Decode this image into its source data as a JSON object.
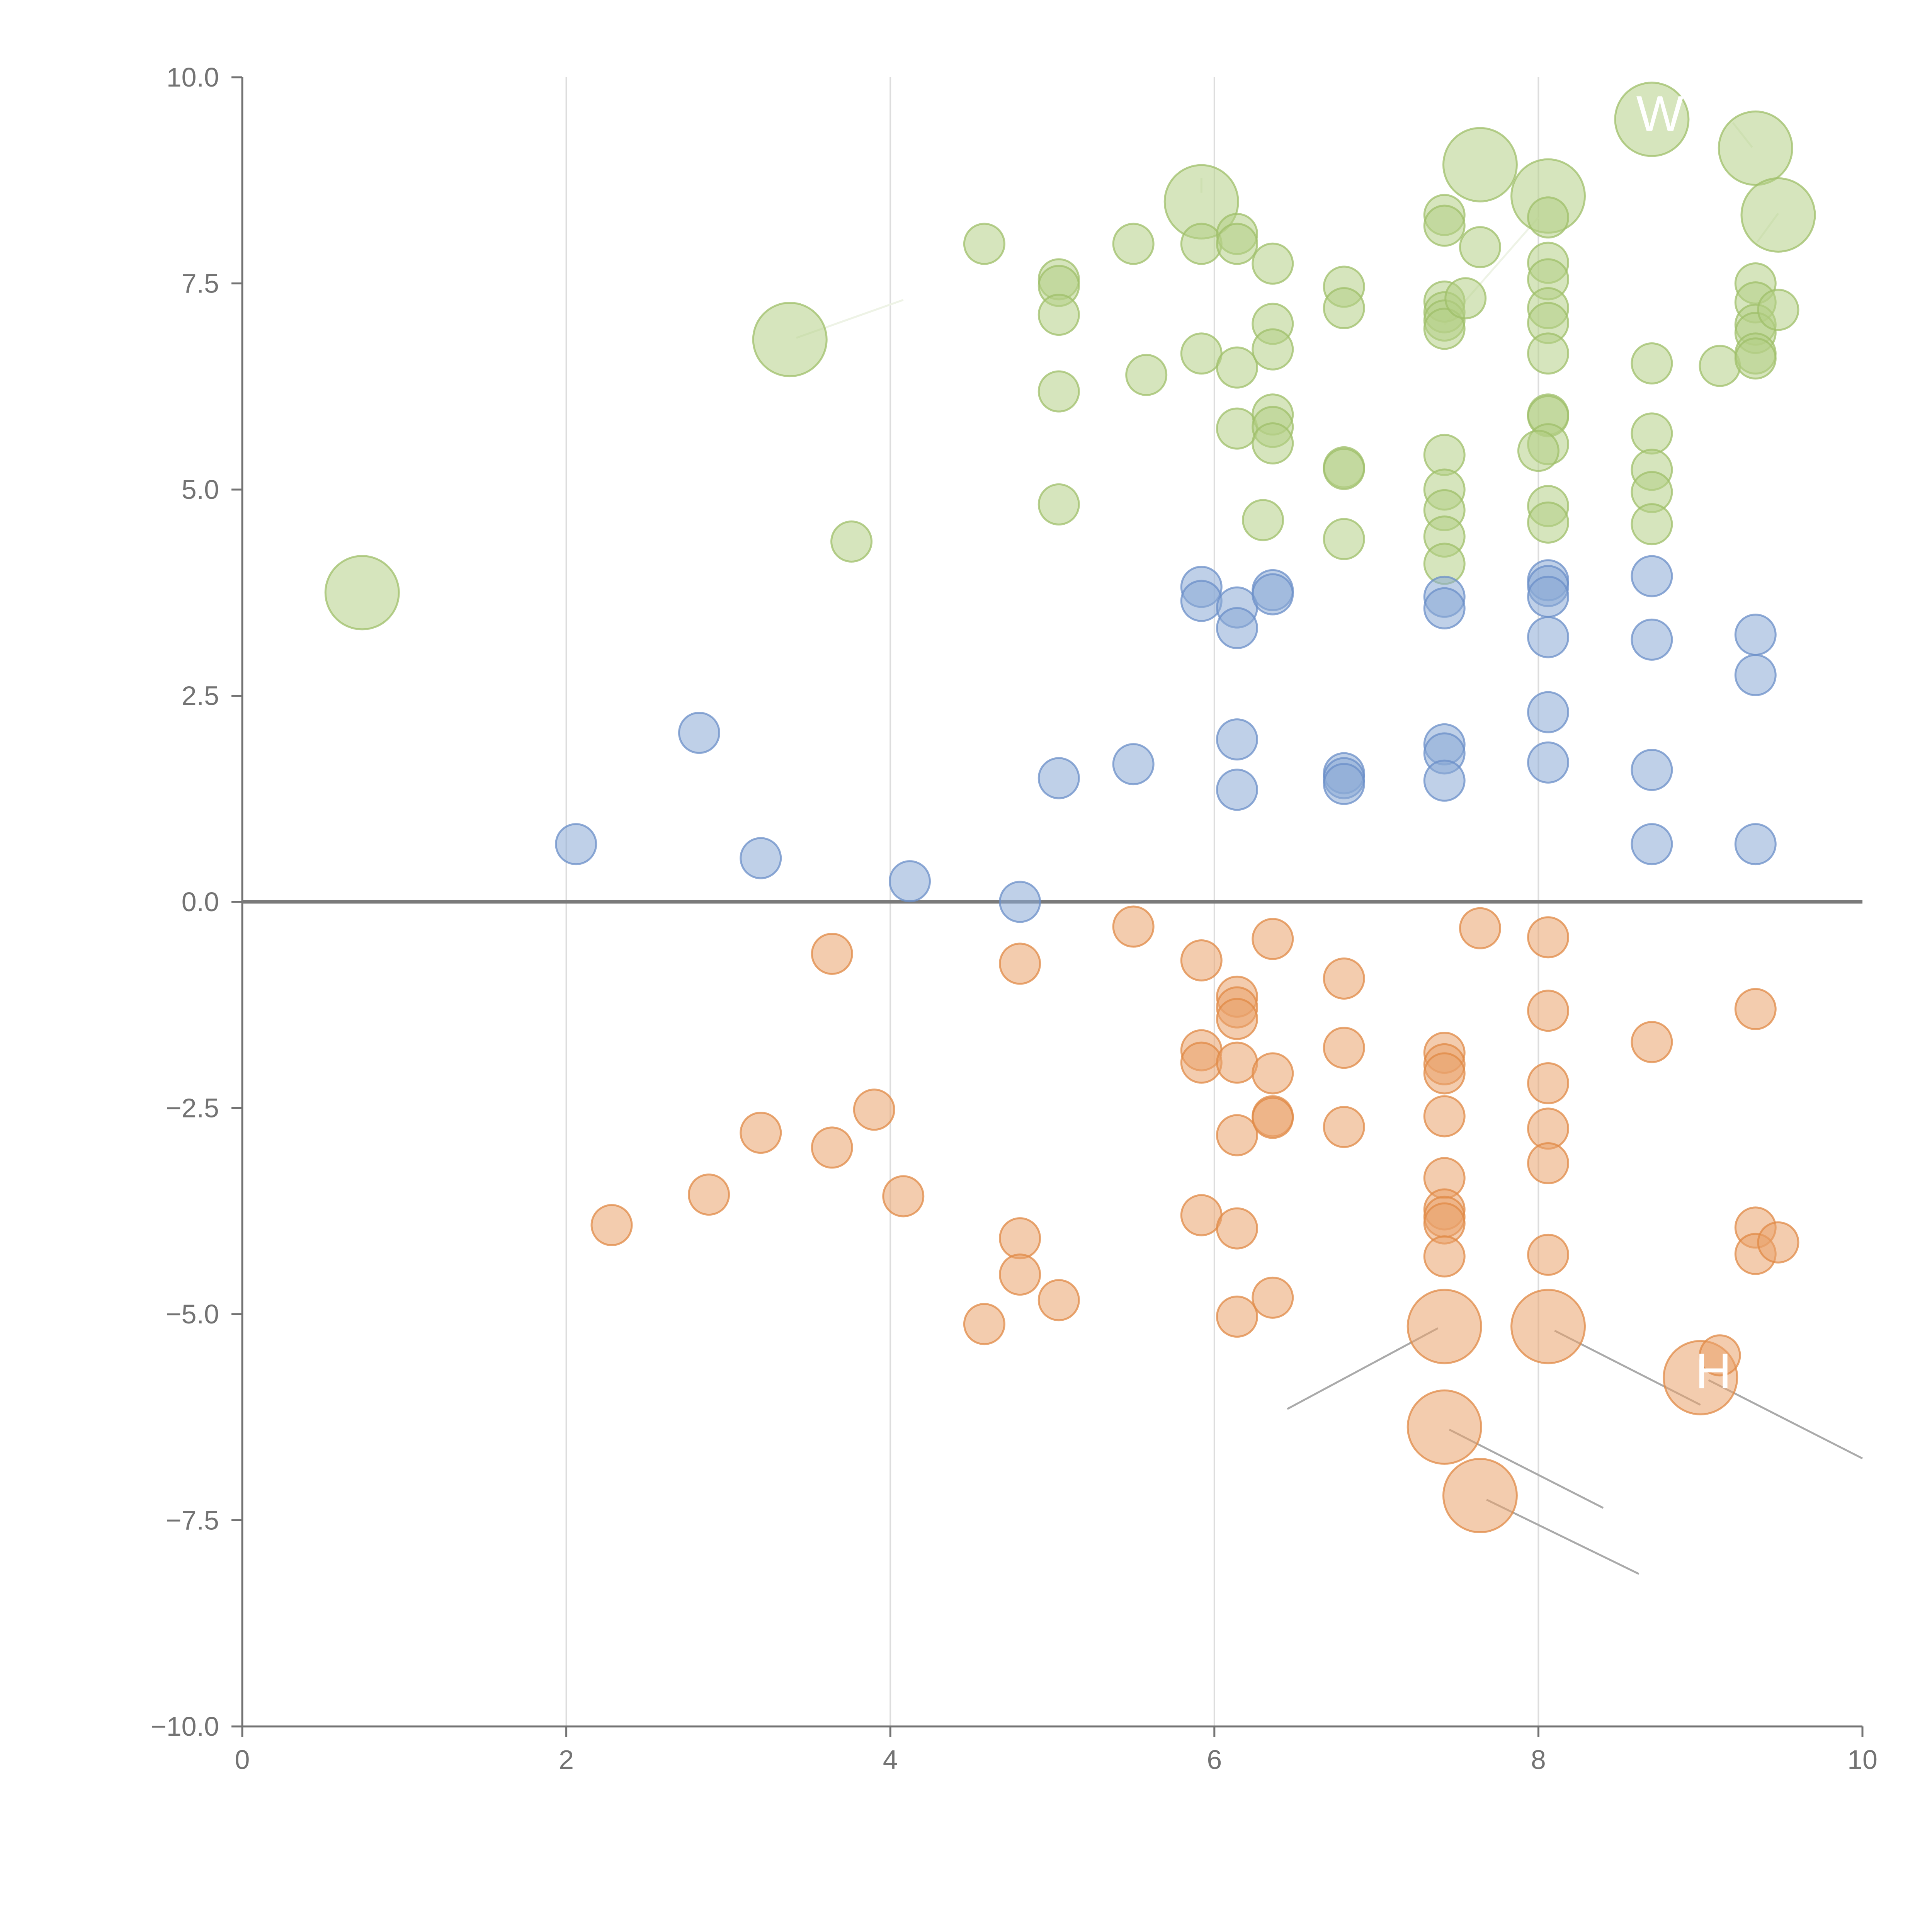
{
  "chart_data": {
    "type": "scatter",
    "title": "",
    "xlabel": "",
    "ylabel": "",
    "xlim": [
      0,
      10
    ],
    "ylim": [
      -10,
      10
    ],
    "xticks": [
      "0",
      "2",
      "4",
      "6",
      "8",
      "10"
    ],
    "yticks": [
      "10.0",
      "7.5",
      "5.0",
      "2.5",
      "0.0",
      "−2.5",
      "−5.0",
      "−7.5",
      "−10.0"
    ],
    "grid": "vertical lines at x = 2, 4, 6, 8",
    "reference_line": {
      "y": 0
    },
    "colors": {
      "green": {
        "fill": "#b5cf87",
        "stroke": "#9fbf6a"
      },
      "blue": {
        "fill": "#8aa9d6",
        "stroke": "#6b8fc8"
      },
      "orange": {
        "fill": "#eaa26b",
        "stroke": "#e08a45"
      }
    },
    "marker_size_units": "relative (1 = small, 2 = large)",
    "series": [
      {
        "name": "green",
        "points": [
          [
            0.74,
            3.75,
            2
          ],
          [
            3.38,
            6.82,
            2
          ],
          [
            3.76,
            4.37,
            1
          ],
          [
            4.58,
            7.98,
            1
          ],
          [
            5.04,
            7.55,
            1
          ],
          [
            5.04,
            7.47,
            1
          ],
          [
            5.04,
            7.12,
            1
          ],
          [
            5.04,
            6.19,
            1
          ],
          [
            5.04,
            4.82,
            1
          ],
          [
            5.5,
            7.98,
            1
          ],
          [
            5.58,
            6.39,
            1
          ],
          [
            5.92,
            8.49,
            2
          ],
          [
            5.92,
            7.98,
            1
          ],
          [
            5.92,
            6.65,
            1
          ],
          [
            6.14,
            8.1,
            1
          ],
          [
            6.14,
            7.98,
            1
          ],
          [
            6.14,
            6.48,
            1
          ],
          [
            6.14,
            5.74,
            1
          ],
          [
            6.36,
            7.74,
            1
          ],
          [
            6.36,
            7.01,
            1
          ],
          [
            6.36,
            6.7,
            1
          ],
          [
            6.36,
            5.91,
            1
          ],
          [
            6.36,
            5.76,
            1
          ],
          [
            6.36,
            5.56,
            1
          ],
          [
            6.3,
            4.63,
            1
          ],
          [
            6.8,
            7.46,
            1
          ],
          [
            6.8,
            7.2,
            1
          ],
          [
            6.8,
            5.27,
            1
          ],
          [
            6.8,
            5.25,
            1
          ],
          [
            6.8,
            4.4,
            1
          ],
          [
            7.42,
            8.33,
            1
          ],
          [
            7.42,
            8.2,
            1
          ],
          [
            7.42,
            7.28,
            1
          ],
          [
            7.42,
            7.15,
            1
          ],
          [
            7.42,
            7.05,
            1
          ],
          [
            7.42,
            6.95,
            1
          ],
          [
            7.42,
            5.42,
            1
          ],
          [
            7.42,
            5.0,
            1
          ],
          [
            7.42,
            4.75,
            1
          ],
          [
            7.42,
            4.43,
            1
          ],
          [
            7.42,
            4.1,
            1
          ],
          [
            7.55,
            7.32,
            1
          ],
          [
            7.64,
            8.94,
            2
          ],
          [
            7.64,
            7.94,
            1
          ],
          [
            8.06,
            8.56,
            2
          ],
          [
            8.06,
            8.3,
            1
          ],
          [
            8.06,
            7.75,
            1
          ],
          [
            8.06,
            7.55,
            1
          ],
          [
            8.06,
            7.2,
            1
          ],
          [
            8.06,
            7.02,
            1
          ],
          [
            8.06,
            6.65,
            1
          ],
          [
            8.06,
            5.91,
            1
          ],
          [
            8.06,
            5.89,
            1
          ],
          [
            8.06,
            5.55,
            1
          ],
          [
            8.0,
            5.47,
            1
          ],
          [
            8.06,
            4.8,
            1
          ],
          [
            8.06,
            4.6,
            1
          ],
          [
            8.7,
            9.49,
            2
          ],
          [
            8.7,
            6.53,
            1
          ],
          [
            8.7,
            5.68,
            1
          ],
          [
            8.7,
            5.24,
            1
          ],
          [
            8.7,
            4.97,
            1
          ],
          [
            8.7,
            4.58,
            1
          ],
          [
            9.12,
            6.5,
            1
          ],
          [
            9.34,
            9.14,
            2
          ],
          [
            9.34,
            7.5,
            1
          ],
          [
            9.34,
            7.27,
            1
          ],
          [
            9.34,
            7.0,
            1
          ],
          [
            9.34,
            6.9,
            1
          ],
          [
            9.34,
            6.65,
            1
          ],
          [
            9.34,
            6.59,
            1
          ],
          [
            9.48,
            8.33,
            2
          ],
          [
            9.48,
            7.18,
            1
          ]
        ]
      },
      {
        "name": "blue",
        "points": [
          [
            2.06,
            0.7,
            1
          ],
          [
            2.82,
            2.05,
            1
          ],
          [
            3.2,
            0.53,
            1
          ],
          [
            4.12,
            0.25,
            1
          ],
          [
            4.8,
            0.0,
            1
          ],
          [
            5.04,
            1.5,
            1
          ],
          [
            5.5,
            1.67,
            1
          ],
          [
            5.92,
            3.82,
            1
          ],
          [
            5.92,
            3.65,
            1
          ],
          [
            6.14,
            3.57,
            1
          ],
          [
            6.14,
            3.32,
            1
          ],
          [
            6.14,
            1.97,
            1
          ],
          [
            6.14,
            1.36,
            1
          ],
          [
            6.36,
            3.78,
            1
          ],
          [
            6.36,
            3.73,
            1
          ],
          [
            6.8,
            1.56,
            1
          ],
          [
            6.8,
            1.5,
            1
          ],
          [
            6.8,
            1.43,
            1
          ],
          [
            7.42,
            3.7,
            1
          ],
          [
            7.42,
            3.56,
            1
          ],
          [
            7.42,
            1.91,
            1
          ],
          [
            7.42,
            1.8,
            1
          ],
          [
            7.42,
            1.47,
            1
          ],
          [
            8.06,
            3.9,
            1
          ],
          [
            8.06,
            3.83,
            1
          ],
          [
            8.06,
            3.7,
            1
          ],
          [
            8.06,
            3.21,
            1
          ],
          [
            8.06,
            2.3,
            1
          ],
          [
            8.06,
            1.69,
            1
          ],
          [
            8.7,
            3.95,
            1
          ],
          [
            8.7,
            3.18,
            1
          ],
          [
            8.7,
            1.6,
            1
          ],
          [
            8.7,
            0.7,
            1
          ],
          [
            9.34,
            3.24,
            1
          ],
          [
            9.34,
            2.75,
            1
          ],
          [
            9.34,
            0.7,
            1
          ]
        ]
      },
      {
        "name": "orange",
        "points": [
          [
            2.28,
            -3.92,
            1
          ],
          [
            2.88,
            -3.55,
            1
          ],
          [
            3.2,
            -2.8,
            1
          ],
          [
            3.64,
            -0.63,
            1
          ],
          [
            3.64,
            -2.98,
            1
          ],
          [
            3.9,
            -2.52,
            1
          ],
          [
            4.08,
            -3.57,
            1
          ],
          [
            4.58,
            -5.12,
            1
          ],
          [
            4.8,
            -0.75,
            1
          ],
          [
            4.8,
            -4.08,
            1
          ],
          [
            4.8,
            -4.52,
            1
          ],
          [
            5.04,
            -4.83,
            1
          ],
          [
            5.5,
            -0.3,
            1
          ],
          [
            5.92,
            -0.71,
            1
          ],
          [
            5.92,
            -1.8,
            1
          ],
          [
            5.92,
            -1.95,
            1
          ],
          [
            5.92,
            -3.8,
            1
          ],
          [
            6.14,
            -1.15,
            1
          ],
          [
            6.14,
            -1.28,
            1
          ],
          [
            6.14,
            -1.42,
            1
          ],
          [
            6.14,
            -1.95,
            1
          ],
          [
            6.14,
            -2.83,
            1
          ],
          [
            6.14,
            -3.96,
            1
          ],
          [
            6.14,
            -5.03,
            1
          ],
          [
            6.36,
            -0.45,
            1
          ],
          [
            6.36,
            -2.08,
            1
          ],
          [
            6.36,
            -2.6,
            1
          ],
          [
            6.36,
            -2.62,
            1
          ],
          [
            6.36,
            -4.8,
            1
          ],
          [
            6.8,
            -0.93,
            1
          ],
          [
            6.8,
            -1.77,
            1
          ],
          [
            6.8,
            -2.73,
            1
          ],
          [
            7.42,
            -1.83,
            1
          ],
          [
            7.42,
            -1.97,
            1
          ],
          [
            7.42,
            -2.08,
            1
          ],
          [
            7.42,
            -2.6,
            1
          ],
          [
            7.42,
            -3.35,
            1
          ],
          [
            7.42,
            -3.73,
            1
          ],
          [
            7.42,
            -3.82,
            1
          ],
          [
            7.42,
            -3.9,
            1
          ],
          [
            7.42,
            -4.3,
            1
          ],
          [
            7.42,
            -5.15,
            2
          ],
          [
            7.42,
            -6.37,
            2
          ],
          [
            7.64,
            -0.32,
            1
          ],
          [
            7.64,
            -7.2,
            2
          ],
          [
            8.06,
            -0.43,
            1
          ],
          [
            8.06,
            -1.32,
            1
          ],
          [
            8.06,
            -2.2,
            1
          ],
          [
            8.06,
            -2.75,
            1
          ],
          [
            8.06,
            -3.17,
            1
          ],
          [
            8.06,
            -4.28,
            1
          ],
          [
            8.06,
            -5.15,
            2
          ],
          [
            8.7,
            -1.7,
            1
          ],
          [
            9.0,
            -5.77,
            2
          ],
          [
            9.12,
            -5.5,
            1
          ],
          [
            9.34,
            -1.3,
            1
          ],
          [
            9.34,
            -3.95,
            1
          ],
          [
            9.34,
            -4.27,
            1
          ],
          [
            9.48,
            -4.13,
            1
          ]
        ]
      }
    ],
    "leader_lines": [
      {
        "style": "gray",
        "from": [
          7.38,
          -5.17
        ],
        "to": [
          6.45,
          -6.15
        ]
      },
      {
        "style": "gray",
        "from": [
          8.1,
          -5.2
        ],
        "to": [
          9.0,
          -6.1
        ]
      },
      {
        "style": "gray",
        "from": [
          9.05,
          -5.8
        ],
        "to": [
          10.0,
          -6.75
        ]
      },
      {
        "style": "gray",
        "from": [
          7.45,
          -6.4
        ],
        "to": [
          8.4,
          -7.35
        ]
      },
      {
        "style": "gray",
        "from": [
          7.68,
          -7.25
        ],
        "to": [
          8.62,
          -8.15
        ]
      },
      {
        "style": "light",
        "from": [
          3.42,
          6.84
        ],
        "to": [
          4.08,
          7.3
        ]
      },
      {
        "style": "light",
        "from": [
          5.92,
          8.78
        ],
        "to": [
          5.92,
          8.6
        ]
      },
      {
        "style": "light",
        "from": [
          7.42,
          7.0
        ],
        "to": [
          8.0,
          8.3
        ]
      },
      {
        "style": "light",
        "from": [
          9.32,
          9.15
        ],
        "to": [
          9.2,
          9.45
        ]
      },
      {
        "style": "light",
        "from": [
          9.48,
          8.35
        ],
        "to": [
          9.35,
          8.0
        ]
      }
    ],
    "annotations": [
      {
        "text": "W",
        "x": 8.75,
        "y": 9.35,
        "series": "green"
      },
      {
        "text": "H",
        "x": 9.08,
        "y": -5.9,
        "series": "orange"
      }
    ]
  }
}
